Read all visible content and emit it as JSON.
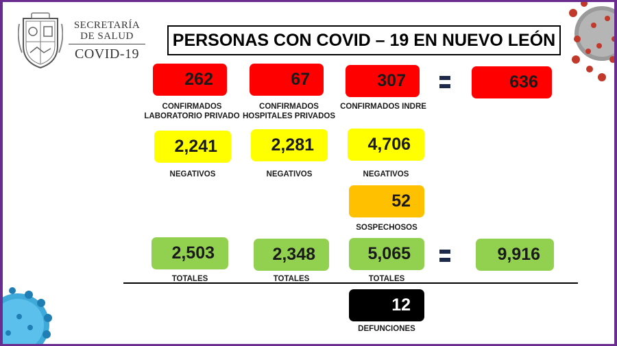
{
  "header": {
    "logo_line1": "SECRETARÍA",
    "logo_line2": "DE SALUD",
    "logo_line3": "COVID-19",
    "title": "PERSONAS CON COVID – 19 EN NUEVO LEÓN"
  },
  "confirmados": {
    "privado": {
      "value": "262",
      "label_line1": "CONFIRMADOS",
      "label_line2": "LABORATORIO PRIVADO"
    },
    "hospitales": {
      "value": "67",
      "label_line1": "CONFIRMADOS",
      "label_line2": "HOSPITALES PRIVADOS"
    },
    "indre": {
      "value": "307",
      "label": "CONFIRMADOS INDRE"
    },
    "total": {
      "value": "636"
    }
  },
  "negativos": {
    "col1": {
      "value": "2,241",
      "label": "NEGATIVOS"
    },
    "col2": {
      "value": "2,281",
      "label": "NEGATIVOS"
    },
    "col3": {
      "value": "4,706",
      "label": "NEGATIVOS"
    }
  },
  "sospechosos": {
    "value": "52",
    "label": "SOSPECHOSOS"
  },
  "totales": {
    "col1": {
      "value": "2,503",
      "label": "TOTALES"
    },
    "col2": {
      "value": "2,348",
      "label": "TOTALES"
    },
    "col3": {
      "value": "5,065",
      "label": "TOTALES"
    },
    "grand": {
      "value": "9,916"
    }
  },
  "defunciones": {
    "value": "12",
    "label": "DEFUNCIONES"
  },
  "colors": {
    "confirmados": "#ff0000",
    "negativos": "#ffff00",
    "sospechosos": "#ffc000",
    "totales": "#92d050",
    "defunciones": "#000000",
    "frame": "#6a2c8e"
  },
  "icons": {
    "seal": "state-seal-icon",
    "virus_top": "coronavirus-icon",
    "virus_bottom": "coronavirus-icon"
  }
}
